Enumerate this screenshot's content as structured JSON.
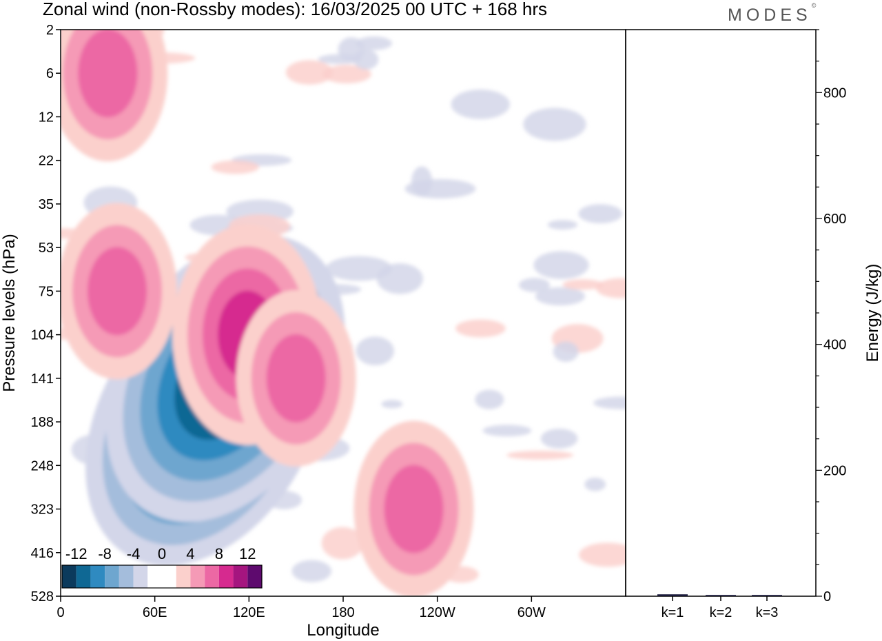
{
  "header": {
    "title": "Zonal wind (non-Rossby modes):  16/03/2025  00 UTC  + 168 hrs",
    "logo_text": "MODES",
    "logo_mark": "©"
  },
  "chart_data": [
    {
      "type": "heatmap",
      "title": "Zonal wind (non-Rossby modes):  16/03/2025  00 UTC  + 168 hrs",
      "xlabel": "Longitude",
      "ylabel": "Pressure levels (hPa)",
      "x_ticks": [
        "0",
        "60E",
        "120E",
        "180",
        "120W",
        "60W"
      ],
      "x_tick_values": [
        0,
        60,
        120,
        180,
        240,
        300
      ],
      "xlim": [
        0,
        360
      ],
      "y_ticks": [
        "2",
        "6",
        "12",
        "22",
        "35",
        "53",
        "75",
        "104",
        "141",
        "188",
        "248",
        "323",
        "416",
        "528"
      ],
      "y_scale": "pressure levels (non-uniform)",
      "colorbar": {
        "tick_labels": [
          "-12",
          "-8",
          "-4",
          "0",
          "4",
          "8",
          "12"
        ],
        "colors": [
          "#0b3a5c",
          "#0f6894",
          "#2f8ac0",
          "#6ea6cf",
          "#a4bddc",
          "#d3d6e9",
          "#ffffff",
          "#ffffff",
          "#fbd0cc",
          "#f59ab6",
          "#ec68a4",
          "#d62a8f",
          "#a5157f",
          "#5e0a6e"
        ]
      },
      "features": [
        {
          "kind": "negative-max",
          "lon": 92,
          "level": "188",
          "value": -14
        },
        {
          "kind": "negative-max",
          "lon": 105,
          "level": "141",
          "value": -14
        },
        {
          "kind": "positive-max",
          "lon": 119,
          "level": "104",
          "value": 10
        },
        {
          "kind": "positive-max",
          "lon": 150,
          "level": "141",
          "value": 8
        },
        {
          "kind": "positive-max",
          "lon": 225,
          "level": "323",
          "value": 8
        },
        {
          "kind": "positive-max",
          "lon": 30,
          "level": "6",
          "value": 8
        },
        {
          "kind": "positive-max",
          "lon": 36,
          "level": "75",
          "value": 8
        }
      ],
      "grid": false
    },
    {
      "type": "bar",
      "categories": [
        "k=1",
        "k=2",
        "k=3"
      ],
      "values": [
        3,
        2,
        2
      ],
      "ylabel": "Energy (J/kg)",
      "y_ticks": [
        "0",
        "200",
        "400",
        "600",
        "800"
      ],
      "ylim": [
        0,
        900
      ]
    }
  ]
}
